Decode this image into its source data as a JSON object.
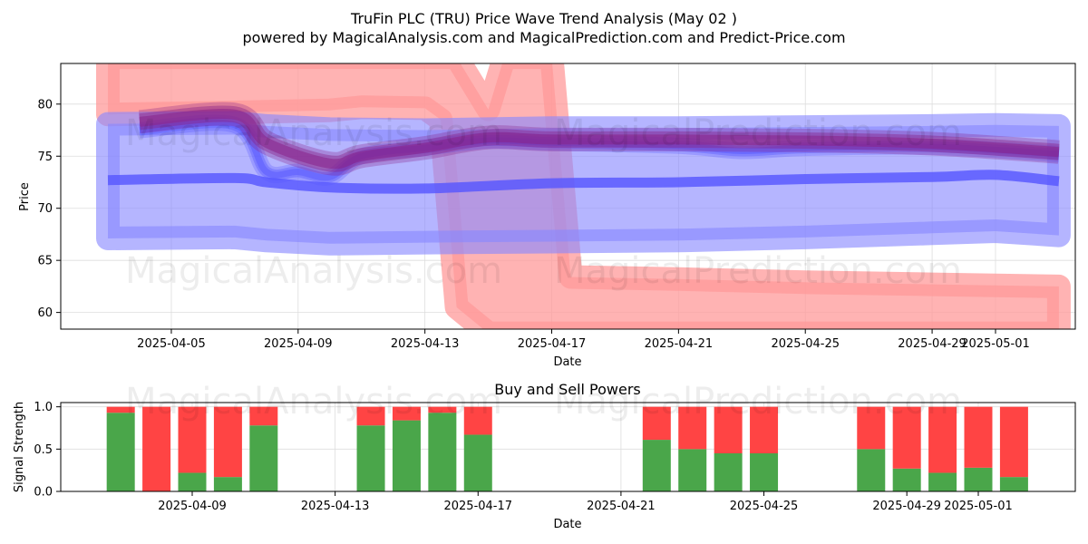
{
  "title_line1": "TruFin PLC (TRU) Price Wave Trend Analysis (May 02 )",
  "title_line2": "powered by MagicalAnalysis.com and MagicalPrediction.com and Predict-Price.com",
  "watermarks": [
    "MagicalAnalysis.com",
    "MagicalPrediction.com"
  ],
  "colors": {
    "red_band": "#ff9999",
    "blue_band": "#8888ff",
    "blue_line": "#5555ff",
    "purple_line": "#882288",
    "buy": "#4aa64a",
    "sell": "#ff4444"
  },
  "chart_data": [
    {
      "type": "line",
      "title": "",
      "xlabel": "Date",
      "ylabel": "Price",
      "ylim": [
        58.4,
        83.9
      ],
      "x_ticks": [
        "2025-04-05",
        "2025-04-09",
        "2025-04-13",
        "2025-04-17",
        "2025-04-21",
        "2025-04-25",
        "2025-04-29",
        "2025-05-01"
      ],
      "y_ticks": [
        60,
        65,
        70,
        75,
        80
      ],
      "grid": true,
      "series": [
        {
          "kind": "red_band",
          "points": [
            {
              "x": "2025-04-03",
              "lo": 79.0,
              "hi": 84.5
            },
            {
              "x": "2025-04-07",
              "lo": 79.2,
              "hi": 84.5
            },
            {
              "x": "2025-04-10",
              "lo": 79.4,
              "hi": 84.5
            },
            {
              "x": "2025-04-11",
              "lo": 79.7,
              "hi": 84.5
            },
            {
              "x": "2025-04-13",
              "lo": 79.6,
              "hi": 84.5
            },
            {
              "x": "2025-04-13.5",
              "lo": 78.5,
              "hi": 84.5
            },
            {
              "x": "2025-04-14",
              "lo": 60.5,
              "hi": 84.5
            },
            {
              "x": "2025-04-15",
              "lo": 58.0,
              "hi": 79.5
            },
            {
              "x": "2025-04-15.5",
              "lo": 58.0,
              "hi": 84.5
            },
            {
              "x": "2025-04-16",
              "lo": 58.0,
              "hi": 84.5
            },
            {
              "x": "2025-04-17",
              "lo": 58.0,
              "hi": 84.5
            },
            {
              "x": "2025-04-17.6",
              "lo": 58.0,
              "hi": 63.4
            },
            {
              "x": "2025-04-21",
              "lo": 58.0,
              "hi": 63.2
            },
            {
              "x": "2025-04-25",
              "lo": 58.0,
              "hi": 62.9
            },
            {
              "x": "2025-04-29",
              "lo": 58.0,
              "hi": 62.7
            },
            {
              "x": "2025-05-03",
              "lo": 58.0,
              "hi": 62.5
            }
          ]
        },
        {
          "kind": "blue_band",
          "points": [
            {
              "x": "2025-04-03",
              "lo": 67.1,
              "hi": 78.1
            },
            {
              "x": "2025-04-07",
              "lo": 67.2,
              "hi": 78.2
            },
            {
              "x": "2025-04-08",
              "lo": 66.9,
              "hi": 77.9
            },
            {
              "x": "2025-04-10",
              "lo": 66.6,
              "hi": 77.6
            },
            {
              "x": "2025-04-13",
              "lo": 66.7,
              "hi": 77.5
            },
            {
              "x": "2025-04-17",
              "lo": 66.8,
              "hi": 77.7
            },
            {
              "x": "2025-04-21",
              "lo": 66.9,
              "hi": 77.7
            },
            {
              "x": "2025-04-25",
              "lo": 67.2,
              "hi": 77.8
            },
            {
              "x": "2025-04-29",
              "lo": 67.6,
              "hi": 77.9
            },
            {
              "x": "2025-05-01",
              "lo": 67.8,
              "hi": 78.0
            },
            {
              "x": "2025-05-03",
              "lo": 67.4,
              "hi": 77.9
            }
          ]
        },
        {
          "kind": "blue_line",
          "points": [
            {
              "x": "2025-04-03",
              "y": 72.7
            },
            {
              "x": "2025-04-07",
              "y": 72.9
            },
            {
              "x": "2025-04-08",
              "y": 72.5
            },
            {
              "x": "2025-04-10",
              "y": 72.0
            },
            {
              "x": "2025-04-13",
              "y": 71.9
            },
            {
              "x": "2025-04-17",
              "y": 72.4
            },
            {
              "x": "2025-04-21",
              "y": 72.5
            },
            {
              "x": "2025-04-25",
              "y": 72.8
            },
            {
              "x": "2025-04-29",
              "y": 73.0
            },
            {
              "x": "2025-05-01",
              "y": 73.2
            },
            {
              "x": "2025-05-03",
              "y": 72.6
            }
          ]
        },
        {
          "kind": "blue_wave",
          "points": [
            {
              "x": "2025-04-04",
              "y": 77.5
            },
            {
              "x": "2025-04-07",
              "y": 78.0
            },
            {
              "x": "2025-04-08",
              "y": 73.5
            },
            {
              "x": "2025-04-09",
              "y": 73.5
            },
            {
              "x": "2025-04-10",
              "y": 73.0
            },
            {
              "x": "2025-04-11",
              "y": 75.0
            },
            {
              "x": "2025-04-13",
              "y": 75.8
            },
            {
              "x": "2025-04-15",
              "y": 76.5
            },
            {
              "x": "2025-04-17",
              "y": 76.3
            },
            {
              "x": "2025-04-21",
              "y": 76.0
            },
            {
              "x": "2025-04-23",
              "y": 75.5
            },
            {
              "x": "2025-04-25",
              "y": 75.8
            },
            {
              "x": "2025-04-29",
              "y": 75.9
            },
            {
              "x": "2025-05-03",
              "y": 75.2
            }
          ]
        },
        {
          "kind": "purple_wave",
          "points": [
            {
              "x": "2025-04-04",
              "y": 78.3
            },
            {
              "x": "2025-04-07",
              "y": 79.0
            },
            {
              "x": "2025-04-08",
              "y": 76.3
            },
            {
              "x": "2025-04-10",
              "y": 74.3
            },
            {
              "x": "2025-04-11",
              "y": 75.0
            },
            {
              "x": "2025-04-13",
              "y": 75.8
            },
            {
              "x": "2025-04-15",
              "y": 76.8
            },
            {
              "x": "2025-04-17",
              "y": 76.6
            },
            {
              "x": "2025-04-21",
              "y": 76.6
            },
            {
              "x": "2025-04-25",
              "y": 76.5
            },
            {
              "x": "2025-04-29",
              "y": 76.2
            },
            {
              "x": "2025-05-03",
              "y": 75.4
            }
          ]
        }
      ]
    },
    {
      "type": "bar",
      "title": "Buy and Sell Powers",
      "xlabel": "Date",
      "ylabel": "Signal Strength",
      "ylim": [
        0,
        1.05
      ],
      "x_ticks": [
        "2025-04-09",
        "2025-04-13",
        "2025-04-17",
        "2025-04-21",
        "2025-04-25",
        "2025-04-29",
        "2025-05-01"
      ],
      "y_ticks": [
        "0.0",
        "0.5",
        "1.0"
      ],
      "grid": true,
      "categories": [
        "2025-04-07",
        "2025-04-08",
        "2025-04-09",
        "2025-04-10",
        "2025-04-11",
        "2025-04-14",
        "2025-04-15",
        "2025-04-16",
        "2025-04-17",
        "2025-04-22",
        "2025-04-23",
        "2025-04-24",
        "2025-04-25",
        "2025-04-28",
        "2025-04-29",
        "2025-04-30",
        "2025-05-01",
        "2025-05-02"
      ],
      "series": [
        {
          "name": "Buy",
          "values": [
            0.93,
            0.0,
            0.22,
            0.17,
            0.78,
            0.78,
            0.84,
            0.93,
            0.67,
            0.61,
            0.5,
            0.45,
            0.45,
            0.5,
            0.27,
            0.22,
            0.28,
            0.17
          ]
        },
        {
          "name": "Sell",
          "values": [
            0.07,
            1.0,
            0.78,
            0.83,
            0.22,
            0.22,
            0.16,
            0.07,
            0.33,
            0.39,
            0.5,
            0.55,
            0.55,
            0.5,
            0.73,
            0.78,
            0.72,
            0.83
          ]
        }
      ]
    }
  ]
}
